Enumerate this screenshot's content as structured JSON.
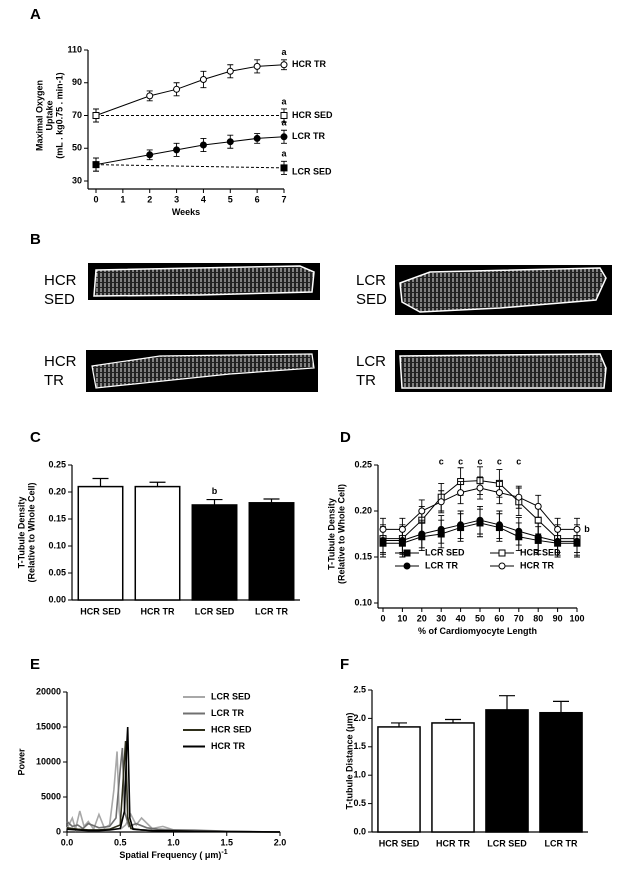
{
  "chart_data": [
    {
      "type": "line",
      "panel": "A",
      "x_label": "Weeks",
      "y_label": [
        "Maximal Oxygen",
        "Uptake",
        "(mL . kg0.75 . min-1)"
      ],
      "xlim": [
        0,
        7
      ],
      "xticks": [
        0,
        1,
        2,
        3,
        4,
        5,
        6,
        7
      ],
      "ylim": [
        30,
        110
      ],
      "yticks": [
        30,
        50,
        70,
        90,
        110
      ],
      "annotations": [
        "a",
        "a",
        "a",
        "a"
      ],
      "series": [
        {
          "name": "HCR TR",
          "marker": "circle-open",
          "dashed": false,
          "x": [
            0,
            2,
            3,
            4,
            5,
            6,
            7
          ],
          "values": [
            70,
            82,
            86,
            92,
            97,
            100,
            101
          ],
          "errors": [
            4,
            3,
            4,
            5,
            4,
            4,
            3
          ]
        },
        {
          "name": "HCR SED",
          "marker": "square-open",
          "dashed": true,
          "x": [
            0,
            7
          ],
          "values": [
            70,
            70
          ],
          "errors": [
            4,
            4
          ]
        },
        {
          "name": "LCR TR",
          "marker": "circle-filled",
          "dashed": false,
          "x": [
            0,
            2,
            3,
            4,
            5,
            6,
            7
          ],
          "values": [
            40,
            46,
            49,
            52,
            54,
            56,
            57
          ],
          "errors": [
            4,
            3,
            4,
            4,
            4,
            3,
            4
          ]
        },
        {
          "name": "LCR SED",
          "marker": "square-filled",
          "dashed": true,
          "x": [
            0,
            7
          ],
          "values": [
            40,
            38
          ],
          "errors": [
            4,
            4
          ]
        }
      ]
    },
    {
      "type": "image",
      "panel": "B",
      "labels": [
        [
          "HCR",
          "SED"
        ],
        [
          "LCR",
          "SED"
        ],
        [
          "HCR",
          "TR"
        ],
        [
          "LCR",
          "TR"
        ]
      ]
    },
    {
      "type": "bar",
      "panel": "C",
      "y_label": [
        "T-Tubule Density",
        "(Relative to Whole Cell)"
      ],
      "categories": [
        "HCR SED",
        "HCR TR",
        "LCR SED",
        "LCR TR"
      ],
      "values": [
        0.21,
        0.21,
        0.176,
        0.18
      ],
      "errors": [
        0.015,
        0.008,
        0.01,
        0.007
      ],
      "colors": [
        "#ffffff",
        "#ffffff",
        "#000000",
        "#000000"
      ],
      "annotations": [
        "b"
      ],
      "ylim": [
        0,
        0.25
      ],
      "yticks": [
        {
          "value": 0,
          "label": "0.00"
        },
        {
          "value": 0.05,
          "label": "0.05"
        },
        {
          "value": 0.1,
          "label": "0.10"
        },
        {
          "value": 0.15,
          "label": "0.15"
        },
        {
          "value": 0.2,
          "label": "0.20"
        },
        {
          "value": 0.25,
          "label": "0.25"
        }
      ]
    },
    {
      "type": "line",
      "panel": "D",
      "x_label": "% of Cardiomyocyte Length",
      "y_label": [
        "T-Tubule Density",
        "(Relative to Whole Cell)"
      ],
      "x": [
        0,
        10,
        20,
        30,
        40,
        50,
        60,
        70,
        80,
        90,
        100
      ],
      "xlim": [
        0,
        100
      ],
      "xticks": [
        0,
        10,
        20,
        30,
        40,
        50,
        60,
        70,
        80,
        90,
        100
      ],
      "ylim": [
        0.1,
        0.25
      ],
      "yticks": [
        {
          "value": 0.1,
          "label": "0.10"
        },
        {
          "value": 0.15,
          "label": "0.15"
        },
        {
          "value": 0.2,
          "label": "0.20"
        },
        {
          "value": 0.25,
          "label": "0.25"
        }
      ],
      "annotations": [
        "c",
        "c",
        "c",
        "c",
        "c",
        "b"
      ],
      "series": [
        {
          "name": "LCR SED",
          "marker": "square-filled",
          "values": [
            0.165,
            0.165,
            0.172,
            0.175,
            0.182,
            0.187,
            0.182,
            0.172,
            0.168,
            0.165,
            0.165
          ],
          "errors": [
            0.015,
            0.015,
            0.015,
            0.015,
            0.015,
            0.015,
            0.015,
            0.015,
            0.015,
            0.015,
            0.015
          ]
        },
        {
          "name": "HCR SED",
          "marker": "square-open",
          "values": [
            0.17,
            0.17,
            0.19,
            0.215,
            0.232,
            0.233,
            0.23,
            0.21,
            0.19,
            0.17,
            0.17
          ],
          "errors": [
            0.015,
            0.015,
            0.015,
            0.015,
            0.015,
            0.015,
            0.015,
            0.015,
            0.015,
            0.015,
            0.015
          ]
        },
        {
          "name": "LCR TR",
          "marker": "circle-filled",
          "values": [
            0.168,
            0.168,
            0.175,
            0.18,
            0.185,
            0.19,
            0.185,
            0.178,
            0.172,
            0.167,
            0.167
          ],
          "errors": [
            0.015,
            0.015,
            0.015,
            0.015,
            0.015,
            0.015,
            0.015,
            0.015,
            0.015,
            0.015,
            0.015
          ]
        },
        {
          "name": "HCR TR",
          "marker": "circle-open",
          "values": [
            0.18,
            0.18,
            0.2,
            0.21,
            0.22,
            0.225,
            0.22,
            0.215,
            0.205,
            0.18,
            0.18
          ],
          "errors": [
            0.012,
            0.012,
            0.012,
            0.012,
            0.012,
            0.012,
            0.012,
            0.012,
            0.012,
            0.012,
            0.012
          ]
        }
      ]
    },
    {
      "type": "spectrum",
      "panel": "E",
      "x_label": "Spatial Frequency ( μm)",
      "x_label_sup": "-1",
      "y_label": [
        "Power"
      ],
      "xlim": [
        0,
        2
      ],
      "xticks": [
        {
          "value": 0,
          "label": "0.0"
        },
        {
          "value": 0.5,
          "label": "0.5"
        },
        {
          "value": 1,
          "label": "1.0"
        },
        {
          "value": 1.5,
          "label": "1.5"
        },
        {
          "value": 2,
          "label": "2.0"
        }
      ],
      "ylim": [
        0,
        20000
      ],
      "yticks": [
        0,
        5000,
        10000,
        15000,
        20000
      ],
      "series": [
        {
          "name": "LCR SED",
          "color": "#a8a8a8",
          "x": [
            0,
            0.05,
            0.08,
            0.12,
            0.16,
            0.2,
            0.25,
            0.3,
            0.35,
            0.4,
            0.44,
            0.47,
            0.49,
            0.51,
            0.55,
            0.6,
            0.65,
            0.7,
            0.8,
            0.9,
            1.0,
            1.2,
            1.5,
            2.0
          ],
          "values": [
            500,
            2000,
            400,
            3000,
            800,
            1500,
            400,
            2500,
            600,
            1000,
            6000,
            11500,
            3000,
            500,
            1000,
            2500,
            1000,
            2000,
            500,
            800,
            300,
            300,
            100,
            0
          ]
        },
        {
          "name": "LCR TR",
          "color": "#707070",
          "x": [
            0,
            0.05,
            0.1,
            0.15,
            0.2,
            0.3,
            0.4,
            0.46,
            0.5,
            0.52,
            0.54,
            0.58,
            0.65,
            0.75,
            0.85,
            1.0,
            1.2,
            1.5,
            2.0
          ],
          "values": [
            1500,
            800,
            1000,
            500,
            1200,
            600,
            800,
            2000,
            9000,
            12000,
            3000,
            800,
            1200,
            600,
            400,
            300,
            200,
            100,
            0
          ]
        },
        {
          "name": "HCR SED",
          "color": "#2e2e1a",
          "x": [
            0,
            0.1,
            0.2,
            0.3,
            0.4,
            0.5,
            0.53,
            0.55,
            0.57,
            0.6,
            0.7,
            0.8,
            1.0,
            1.2,
            1.5,
            2.0
          ],
          "values": [
            600,
            400,
            300,
            300,
            400,
            1000,
            8000,
            13000,
            2000,
            500,
            300,
            200,
            150,
            100,
            50,
            0
          ]
        },
        {
          "name": "HCR TR",
          "color": "#000000",
          "x": [
            0,
            0.1,
            0.2,
            0.3,
            0.4,
            0.5,
            0.54,
            0.56,
            0.57,
            0.59,
            0.62,
            0.7,
            0.8,
            1.0,
            1.2,
            1.5,
            2.0
          ],
          "values": [
            400,
            300,
            200,
            200,
            300,
            500,
            3000,
            12000,
            15000,
            2000,
            400,
            300,
            200,
            150,
            100,
            50,
            0
          ]
        }
      ]
    },
    {
      "type": "bar",
      "panel": "F",
      "y_label": [
        "T-tubule Distance (μm)"
      ],
      "categories": [
        "HCR SED",
        "HCR TR",
        "LCR SED",
        "LCR TR"
      ],
      "values": [
        1.85,
        1.92,
        2.15,
        2.1
      ],
      "errors": [
        0.07,
        0.06,
        0.25,
        0.2
      ],
      "colors": [
        "#ffffff",
        "#ffffff",
        "#000000",
        "#000000"
      ],
      "ylim": [
        0,
        2.5
      ],
      "yticks": [
        {
          "value": 0,
          "label": "0.0"
        },
        {
          "value": 0.5,
          "label": "0.5"
        },
        {
          "value": 1,
          "label": "1.0"
        },
        {
          "value": 1.5,
          "label": "1.5"
        },
        {
          "value": 2,
          "label": "2.0"
        },
        {
          "value": 2.5,
          "label": "2.5"
        }
      ]
    }
  ]
}
